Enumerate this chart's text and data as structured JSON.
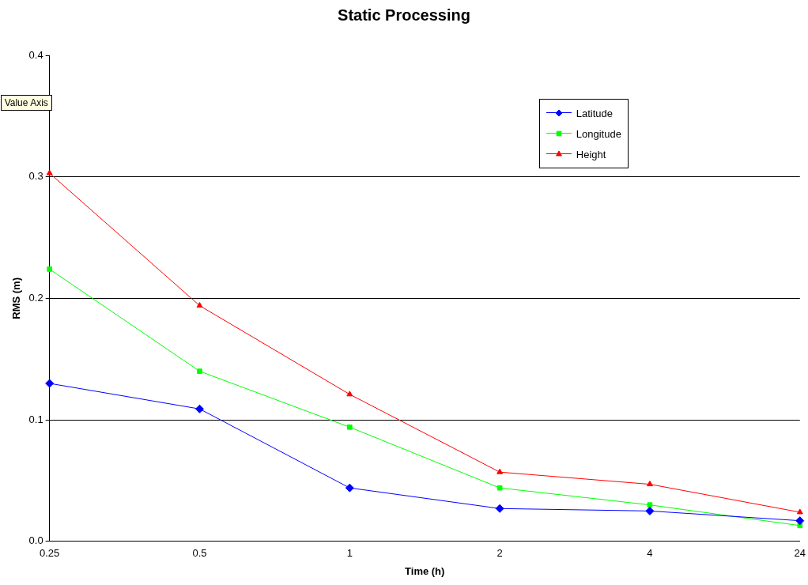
{
  "chart_data": {
    "type": "line",
    "title": "Static Processing",
    "xlabel": "Time (h)",
    "ylabel": "RMS (m)",
    "categories": [
      "0.25",
      "0.5",
      "1",
      "2",
      "4",
      "24"
    ],
    "series": [
      {
        "name": "Latitude",
        "color": "#0000ff",
        "marker": "diamond",
        "values": [
          0.13,
          0.109,
          0.044,
          0.027,
          0.025,
          0.017
        ]
      },
      {
        "name": "Longitude",
        "color": "#00ff00",
        "marker": "square",
        "values": [
          0.224,
          0.14,
          0.094,
          0.044,
          0.03,
          0.013
        ]
      },
      {
        "name": "Height",
        "color": "#ff0000",
        "marker": "triangle",
        "values": [
          0.303,
          0.194,
          0.121,
          0.057,
          0.047,
          0.024
        ]
      }
    ],
    "ylim": [
      0,
      0.4
    ],
    "yticks": [
      {
        "value": 0,
        "label": "0.0"
      },
      {
        "value": 0.1,
        "label": "0.1"
      },
      {
        "value": 0.2,
        "label": "0.2"
      },
      {
        "value": 0.3,
        "label": "0.3"
      },
      {
        "value": 0.4,
        "label": "0.4"
      }
    ],
    "grid": "y",
    "legend": "top right",
    "line_style": "solid",
    "annotations": [
      "Value Axis"
    ]
  }
}
